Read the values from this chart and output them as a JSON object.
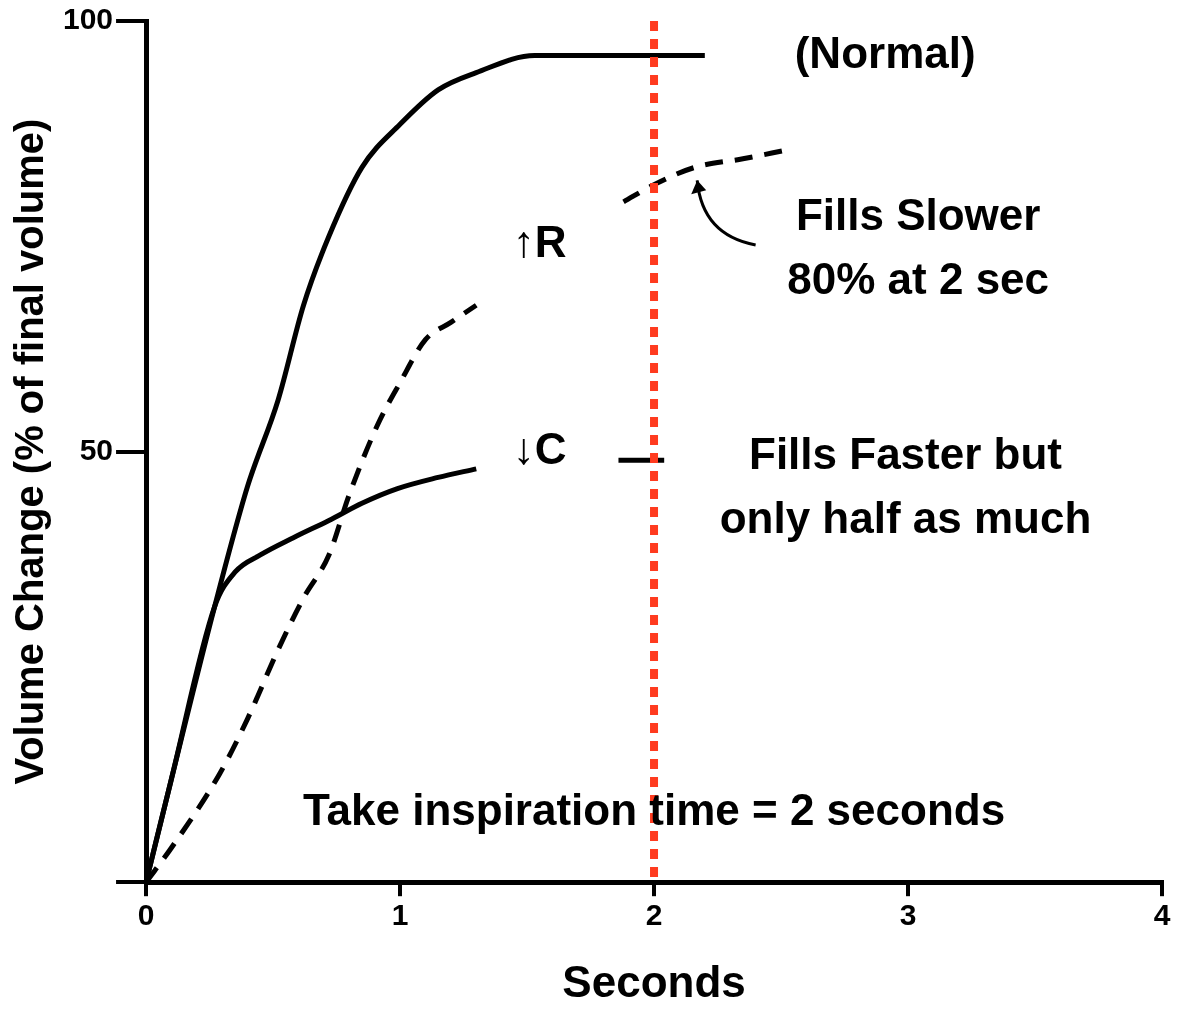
{
  "chart_data": {
    "type": "line",
    "xlabel": "Seconds",
    "ylabel": "Volume Change (% of final volume)",
    "xlim": [
      0,
      4
    ],
    "ylim": [
      0,
      100
    ],
    "xticks": [
      0,
      1,
      2,
      3,
      4
    ],
    "yticks": [
      {
        "value": 0,
        "label": null
      },
      50,
      100
    ],
    "grid": false,
    "legend": false,
    "marker": "none",
    "series": [
      {
        "color": "#000000",
        "line_style": "solid",
        "x": [
          0,
          0.1,
          0.27,
          0.4,
          0.52,
          0.62,
          0.72,
          0.85,
          1.0,
          1.15,
          1.3,
          1.53,
          1.75,
          2.0,
          2.2
        ],
        "values": [
          0,
          12,
          32,
          46,
          56,
          67,
          75,
          83,
          88,
          92,
          94,
          96,
          96,
          96,
          96
        ]
      },
      {
        "color": "#000000",
        "line_style": "dashed",
        "x": [
          0,
          0.1,
          0.29,
          0.4,
          0.52,
          0.62,
          0.72,
          0.8,
          0.91,
          1.0,
          1.1,
          1.2,
          1.3,
          1.6,
          1.88,
          2.0,
          2.16,
          2.35,
          2.52
        ],
        "values": [
          0,
          4,
          12.6,
          19,
          27,
          33,
          38,
          45,
          53,
          58,
          63,
          65,
          67,
          null,
          79,
          81,
          83,
          84,
          85
        ]
      },
      {
        "color": "#000000",
        "line_style": "solid",
        "x": [
          0,
          0.1,
          0.27,
          0.35,
          0.45,
          0.58,
          0.72,
          0.85,
          0.99,
          1.15,
          1.3,
          1.6,
          1.86,
          2.04
        ],
        "values": [
          0,
          12,
          32,
          36,
          38,
          40,
          42,
          44,
          45.7,
          47,
          48,
          null,
          49,
          49
        ]
      }
    ],
    "ref_lines": [
      {
        "axis": "x",
        "value": 2,
        "color": "#ff3b1f",
        "line_style": "dotted"
      }
    ],
    "annotations": [
      "(Normal)",
      "↑R",
      "↓C",
      "Fills Slower\n80% at 2 sec",
      "Fills Faster but\nonly half as much",
      {
        "text": "Take inspiration time = 2 seconds",
        "x": 2.0,
        "y": 8
      }
    ]
  }
}
